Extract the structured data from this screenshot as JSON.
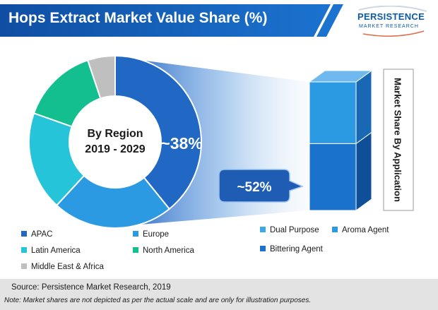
{
  "header": {
    "title": "Hops Extract Market Value Share (%)",
    "logo_top": "PERSISTENCE",
    "logo_bottom": "MARKET RESEARCH"
  },
  "chart_data": [
    {
      "type": "pie",
      "style": "donut",
      "center_label_lines": [
        "By Region",
        "2019 - 2029"
      ],
      "categories": [
        "APAC",
        "Europe",
        "Latin America",
        "North America",
        "Middle East & Africa"
      ],
      "values": [
        38,
        22,
        18,
        14,
        5
      ],
      "slice_order_clockwise_from_top": [
        "APAC",
        "Europe",
        "Latin America",
        "North America",
        "Middle East & Africa"
      ],
      "data_labels": [
        {
          "category": "APAC",
          "text": "~38%"
        }
      ],
      "colors": [
        "#2167c4",
        "#2c9ae3",
        "#25c4d8",
        "#14bf8f",
        "#bfbfbf"
      ],
      "legend_position": "bottom-left"
    },
    {
      "type": "bar",
      "style": "stacked-3d",
      "title": "Market Share By Application",
      "categories": [
        "Bittering Agent",
        "Aroma Agent",
        "Dual Purpose"
      ],
      "values": [
        52,
        48,
        0
      ],
      "stack_order_bottom_to_top": [
        "Bittering Agent",
        "Aroma Agent"
      ],
      "data_labels": [
        {
          "category": "Bittering Agent",
          "text": "~52%"
        }
      ],
      "colors": [
        "#1a72cc",
        "#2c9ae3",
        "#3ca9e6"
      ],
      "legend_position": "bottom-right"
    }
  ],
  "legend": {
    "region": [
      {
        "label": "APAC",
        "color": "#2167c4"
      },
      {
        "label": "Europe",
        "color": "#2c9ae3"
      },
      {
        "label": "Latin America",
        "color": "#25c4d8"
      },
      {
        "label": "North America",
        "color": "#14bf8f"
      },
      {
        "label": "Middle East & Africa",
        "color": "#bfbfbf"
      }
    ],
    "application": [
      {
        "label": "Dual Purpose",
        "color": "#3ca9e6"
      },
      {
        "label": "Aroma Agent",
        "color": "#2c9ae3"
      },
      {
        "label": "Bittering Agent",
        "color": "#1a72cc"
      }
    ]
  },
  "footer": {
    "source": "Source: Persistence Market Research, 2019",
    "note": "Note: Market shares are not depicted as per the actual scale and are only for illustration purposes."
  }
}
